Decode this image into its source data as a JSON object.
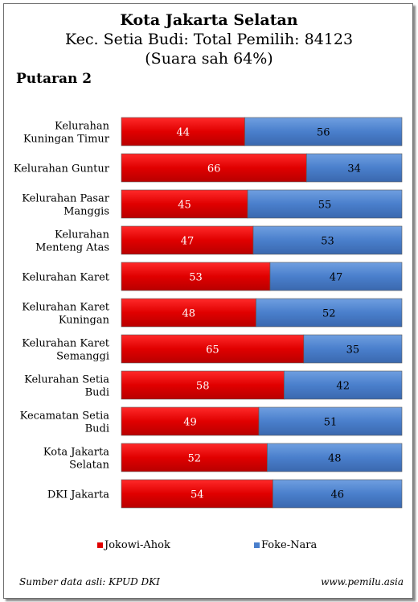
{
  "header": {
    "title": "Kota Jakarta Selatan",
    "subtitle_line1": "Kec. Setia Budi: Total Pemilih: 84123",
    "subtitle_line2": "(Suara sah 64%)",
    "round": "Putaran 2"
  },
  "chart_data": {
    "type": "bar",
    "orientation": "horizontal",
    "stacked": "100%",
    "categories": [
      [
        "Kelurahan",
        "Kuningan Timur"
      ],
      [
        "Kelurahan Guntur"
      ],
      [
        "Kelurahan Pasar",
        "Manggis"
      ],
      [
        "Kelurahan",
        "Menteng Atas"
      ],
      [
        "Kelurahan Karet"
      ],
      [
        "Kelurahan Karet",
        "Kuningan"
      ],
      [
        "Kelurahan Karet",
        "Semanggi"
      ],
      [
        "Kelurahan Setia",
        "Budi"
      ],
      [
        "Kecamatan Setia",
        "Budi"
      ],
      [
        "Kota Jakarta",
        "Selatan"
      ],
      [
        "DKI Jakarta"
      ]
    ],
    "series": [
      {
        "name": "Jokowi-Ahok",
        "color": "#e00000",
        "label_color": "#ffffff",
        "values": [
          44,
          66,
          45,
          47,
          53,
          48,
          65,
          58,
          49,
          52,
          54
        ]
      },
      {
        "name": "Foke-Nara",
        "color": "#4a7fcc",
        "label_color": "#000000",
        "values": [
          56,
          34,
          55,
          53,
          47,
          52,
          35,
          42,
          51,
          48,
          46
        ]
      }
    ],
    "xlim": [
      0,
      100
    ],
    "legend_position": "bottom",
    "grid": false
  },
  "legend": {
    "a_label": "Jokowi-Ahok",
    "a_color": "#e00000",
    "b_label": "Foke-Nara",
    "b_color": "#4a7fcc"
  },
  "footer": {
    "source": "Sumber data asli: KPUD DKI",
    "site": "www.pemilu.asia"
  }
}
